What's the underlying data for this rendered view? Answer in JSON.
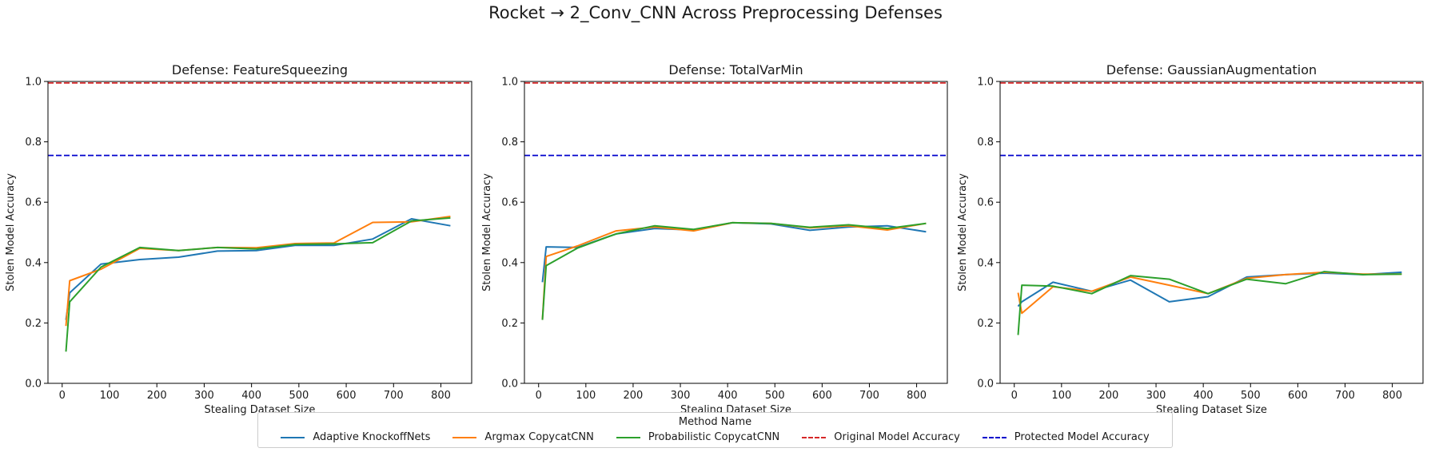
{
  "figure": {
    "title": "Rocket → 2_Conv_CNN Across Preprocessing Defenses",
    "legend_title": "Method Name"
  },
  "legend": [
    {
      "label": "Adaptive KnockoffNets",
      "color": "#1f77b4",
      "style": "solid"
    },
    {
      "label": "Argmax CopycatCNN",
      "color": "#ff7f0e",
      "style": "solid"
    },
    {
      "label": "Probabilistic CopycatCNN",
      "color": "#2ca02c",
      "style": "solid"
    },
    {
      "label": "Original Model Accuracy",
      "color": "#d62728",
      "style": "dashed"
    },
    {
      "label": "Protected Model Accuracy",
      "color": "#0000cc",
      "style": "dashed"
    }
  ],
  "chart_data": [
    {
      "type": "line",
      "title": "Defense: FeatureSqueezing",
      "xlabel": "Stealing Dataset Size",
      "ylabel": "Stolen Model Accuracy",
      "xlim": [
        -30,
        865
      ],
      "ylim": [
        0,
        1.0
      ],
      "xticks": [
        0,
        100,
        200,
        300,
        400,
        500,
        600,
        700,
        800
      ],
      "yticks": [
        0.0,
        0.2,
        0.4,
        0.6,
        0.8,
        1.0
      ],
      "grid": false,
      "reference_lines": [
        {
          "name": "Original Model Accuracy",
          "y": 0.995,
          "color": "#d62728"
        },
        {
          "name": "Protected Model Accuracy",
          "y": 0.755,
          "color": "#0000cc"
        }
      ],
      "series": [
        {
          "name": "Adaptive KnockoffNets",
          "color": "#1f77b4",
          "x": [
            8,
            16,
            82,
            164,
            246,
            328,
            410,
            492,
            574,
            656,
            738,
            820
          ],
          "y": [
            0.21,
            0.3,
            0.395,
            0.41,
            0.418,
            0.438,
            0.44,
            0.457,
            0.457,
            0.478,
            0.545,
            0.522
          ]
        },
        {
          "name": "Argmax CopycatCNN",
          "color": "#ff7f0e",
          "x": [
            8,
            16,
            82,
            164,
            246,
            328,
            410,
            492,
            574,
            656,
            738,
            820
          ],
          "y": [
            0.19,
            0.34,
            0.378,
            0.447,
            0.44,
            0.45,
            0.449,
            0.463,
            0.465,
            0.533,
            0.535,
            0.553
          ]
        },
        {
          "name": "Probabilistic CopycatCNN",
          "color": "#2ca02c",
          "x": [
            8,
            16,
            82,
            164,
            246,
            328,
            410,
            492,
            574,
            656,
            738,
            820
          ],
          "y": [
            0.105,
            0.27,
            0.385,
            0.45,
            0.44,
            0.45,
            0.445,
            0.46,
            0.462,
            0.466,
            0.538,
            0.548
          ]
        }
      ]
    },
    {
      "type": "line",
      "title": "Defense: TotalVarMin",
      "xlabel": "Stealing Dataset Size",
      "ylabel": "Stolen Model Accuracy",
      "xlim": [
        -30,
        865
      ],
      "ylim": [
        0,
        1.0
      ],
      "xticks": [
        0,
        100,
        200,
        300,
        400,
        500,
        600,
        700,
        800
      ],
      "yticks": [
        0.0,
        0.2,
        0.4,
        0.6,
        0.8,
        1.0
      ],
      "grid": false,
      "reference_lines": [
        {
          "name": "Original Model Accuracy",
          "y": 0.995,
          "color": "#d62728"
        },
        {
          "name": "Protected Model Accuracy",
          "y": 0.755,
          "color": "#0000cc"
        }
      ],
      "series": [
        {
          "name": "Adaptive KnockoffNets",
          "color": "#1f77b4",
          "x": [
            8,
            16,
            82,
            164,
            246,
            328,
            410,
            492,
            574,
            656,
            738,
            820
          ],
          "y": [
            0.335,
            0.452,
            0.45,
            0.495,
            0.513,
            0.508,
            0.532,
            0.528,
            0.507,
            0.518,
            0.522,
            0.502
          ]
        },
        {
          "name": "Argmax CopycatCNN",
          "color": "#ff7f0e",
          "x": [
            8,
            16,
            82,
            164,
            246,
            328,
            410,
            492,
            574,
            656,
            738,
            820
          ],
          "y": [
            0.21,
            0.42,
            0.455,
            0.505,
            0.518,
            0.505,
            0.532,
            0.53,
            0.515,
            0.522,
            0.508,
            0.53
          ]
        },
        {
          "name": "Probabilistic CopycatCNN",
          "color": "#2ca02c",
          "x": [
            8,
            16,
            82,
            164,
            246,
            328,
            410,
            492,
            574,
            656,
            738,
            820
          ],
          "y": [
            0.21,
            0.39,
            0.448,
            0.495,
            0.522,
            0.51,
            0.532,
            0.53,
            0.517,
            0.525,
            0.513,
            0.53
          ]
        }
      ]
    },
    {
      "type": "line",
      "title": "Defense: GaussianAugmentation",
      "xlabel": "Stealing Dataset Size",
      "ylabel": "Stolen Model Accuracy",
      "xlim": [
        -30,
        865
      ],
      "ylim": [
        0,
        1.0
      ],
      "xticks": [
        0,
        100,
        200,
        300,
        400,
        500,
        600,
        700,
        800
      ],
      "yticks": [
        0.0,
        0.2,
        0.4,
        0.6,
        0.8,
        1.0
      ],
      "grid": false,
      "reference_lines": [
        {
          "name": "Original Model Accuracy",
          "y": 0.995,
          "color": "#d62728"
        },
        {
          "name": "Protected Model Accuracy",
          "y": 0.755,
          "color": "#0000cc"
        }
      ],
      "series": [
        {
          "name": "Adaptive KnockoffNets",
          "color": "#1f77b4",
          "x": [
            8,
            16,
            82,
            164,
            246,
            328,
            410,
            492,
            574,
            656,
            738,
            820
          ],
          "y": [
            0.255,
            0.27,
            0.335,
            0.305,
            0.342,
            0.27,
            0.287,
            0.352,
            0.36,
            0.365,
            0.36,
            0.368
          ]
        },
        {
          "name": "Argmax CopycatCNN",
          "color": "#ff7f0e",
          "x": [
            8,
            16,
            82,
            164,
            246,
            328,
            410,
            492,
            574,
            656,
            738,
            820
          ],
          "y": [
            0.3,
            0.232,
            0.32,
            0.305,
            0.352,
            0.325,
            0.297,
            0.348,
            0.36,
            0.368,
            0.362,
            0.362
          ]
        },
        {
          "name": "Probabilistic CopycatCNN",
          "color": "#2ca02c",
          "x": [
            8,
            16,
            82,
            164,
            246,
            328,
            410,
            492,
            574,
            656,
            738,
            820
          ],
          "y": [
            0.16,
            0.325,
            0.322,
            0.297,
            0.357,
            0.345,
            0.297,
            0.345,
            0.33,
            0.37,
            0.36,
            0.362
          ]
        }
      ]
    }
  ]
}
